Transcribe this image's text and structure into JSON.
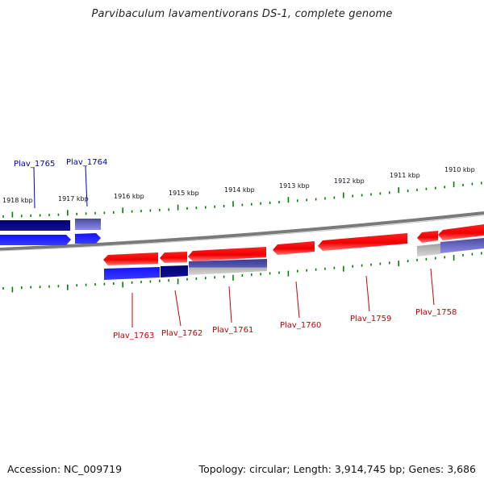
{
  "title": "Parvibaculum lavamentivorans DS-1, complete genome",
  "footer": {
    "accession": "Accession: NC_009719",
    "summary": "Topology: circular; Length: 3,914,745 bp; Genes: 3,686"
  },
  "colors": {
    "forward_strand": "#ff0000",
    "reverse_strand": "#0000ff",
    "reverse_dark": "#000080",
    "reverse_light": "#6a6ad8",
    "pseudo_gray": "#a8a8a8",
    "backbone": "#808080",
    "ticks": "#008000"
  },
  "scale_labels": [
    "1918 kbp",
    "1917 kbp",
    "1916 kbp",
    "1915 kbp",
    "1914 kbp",
    "1913 kbp",
    "1912 kbp",
    "1911 kbp",
    "1910 kbp"
  ],
  "genes_reverse": [
    "Plav_1765",
    "Plav_1764"
  ],
  "genes_forward": [
    "Plav_1763",
    "Plav_1762",
    "Plav_1761",
    "Plav_1760",
    "Plav_1759",
    "Plav_1758"
  ]
}
